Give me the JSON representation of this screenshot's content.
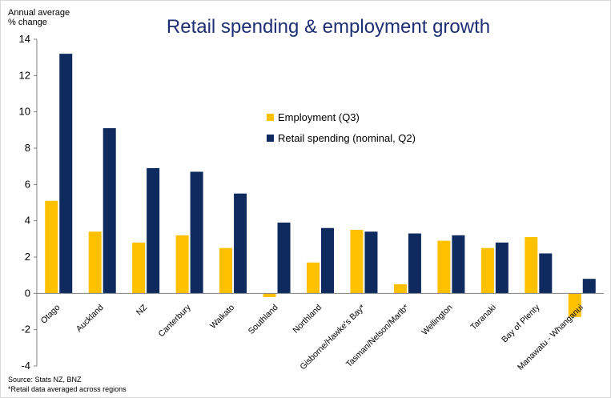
{
  "chart_data": {
    "type": "bar",
    "title": "Retail spending & employment growth",
    "ylabel": [
      "Annual average",
      "% change"
    ],
    "xlabel": "",
    "ylim": [
      -4,
      14
    ],
    "yticks": [
      -4,
      -2,
      0,
      2,
      4,
      6,
      8,
      10,
      12,
      14
    ],
    "categories": [
      "Otago",
      "Auckland",
      "NZ",
      "Canterbury",
      "Waikato",
      "Southland",
      "Northland",
      "Gisborne/Hawke's Bay*",
      "Tasman/Nelson/Marlb*",
      "Wellington",
      "Taranaki",
      "Bay of Plenty",
      "Manawatu - Whanganui"
    ],
    "series": [
      {
        "name": "Employment (Q3)",
        "color": "#ffc000",
        "values": [
          5.1,
          3.4,
          2.8,
          3.2,
          2.5,
          -0.2,
          1.7,
          3.5,
          0.5,
          2.9,
          2.5,
          3.1,
          -1.3
        ]
      },
      {
        "name": "Retail spending (nominal, Q2)",
        "color": "#0f2a5e",
        "values": [
          13.2,
          9.1,
          6.9,
          6.7,
          5.5,
          3.9,
          3.6,
          3.4,
          3.3,
          3.2,
          2.8,
          2.2,
          0.8
        ]
      }
    ],
    "legend_position": "center-right",
    "grid": false
  },
  "notes": {
    "source": "Source: Stats NZ, BNZ",
    "footnote": "*Retail data averaged across regions"
  }
}
